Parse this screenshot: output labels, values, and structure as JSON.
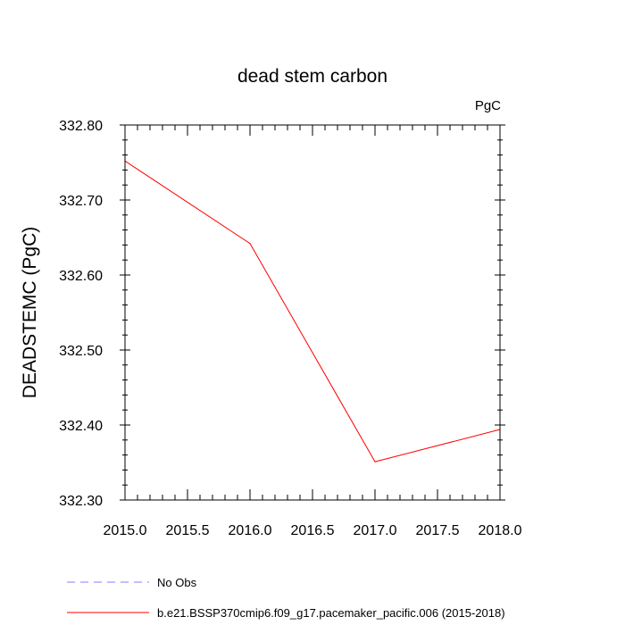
{
  "chart_data": {
    "type": "line",
    "title": "dead stem carbon",
    "units_label": "PgC",
    "xlabel": "",
    "ylabel": "DEADSTEMC  (PgC)",
    "xlim": [
      2015.0,
      2018.0
    ],
    "ylim": [
      332.3,
      332.8
    ],
    "x_ticks": [
      "2015.0",
      "2015.5",
      "2016.0",
      "2016.5",
      "2017.0",
      "2017.5",
      "2018.0"
    ],
    "y_ticks": [
      "332.30",
      "332.40",
      "332.50",
      "332.60",
      "332.70",
      "332.80"
    ],
    "grid": false,
    "series": [
      {
        "name": "b.e21.BSSP370cmip6.f09_g17.pacemaker_pacific.006 (2015-2018)",
        "color": "#ff0000",
        "dash": "solid",
        "x": [
          2015.0,
          2016.0,
          2017.0,
          2018.0
        ],
        "y": [
          332.752,
          332.642,
          332.351,
          332.394
        ]
      }
    ],
    "legend": [
      {
        "label": "No Obs",
        "color": "#8080ff",
        "dash": "dashed"
      },
      {
        "label": "b.e21.BSSP370cmip6.f09_g17.pacemaker_pacific.006 (2015-2018)",
        "color": "#ff0000",
        "dash": "solid"
      }
    ],
    "legend_placement": "bottom"
  }
}
